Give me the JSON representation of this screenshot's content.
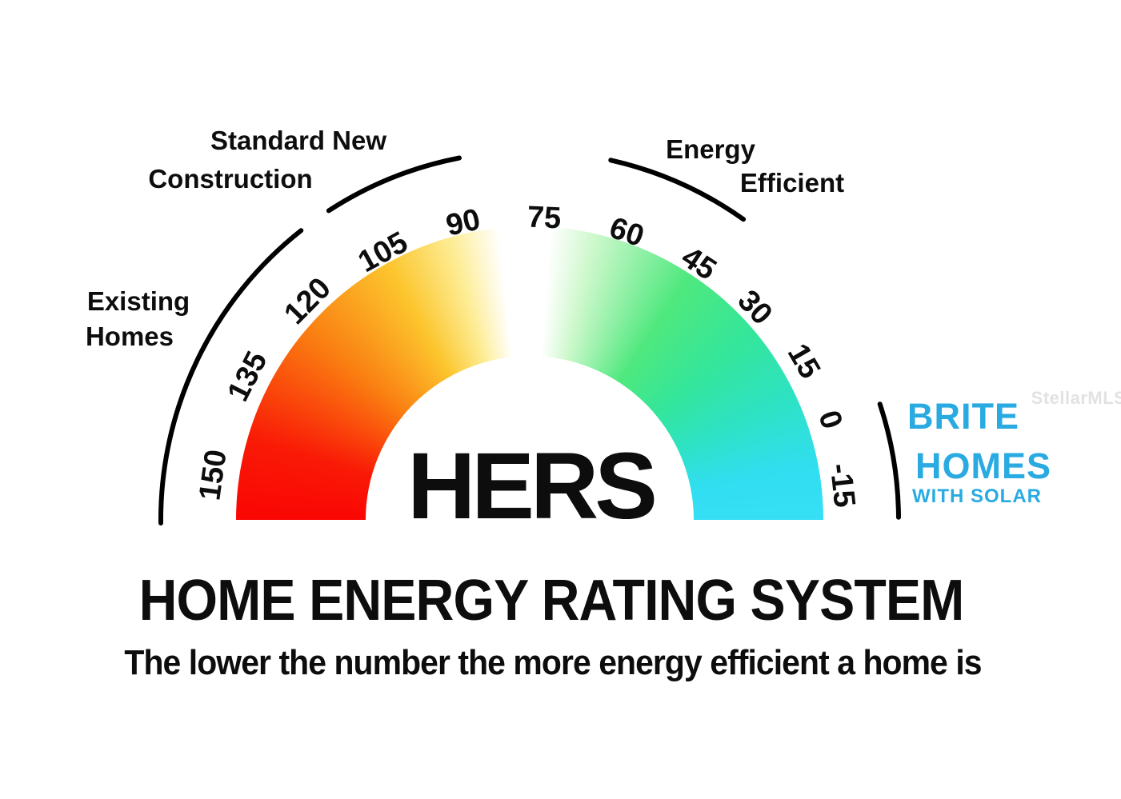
{
  "title": "HOME ENERGY RATING SYSTEM",
  "subtitle": "The lower the number the more energy efficient a home is",
  "watermark": "StellarMLS",
  "gauge": {
    "center_label": "HERS",
    "scale": {
      "min": -15,
      "max": 150,
      "step": 15
    },
    "ticks": [
      "150",
      "135",
      "120",
      "105",
      "90",
      "75",
      "60",
      "45",
      "30",
      "15",
      "0",
      "-15"
    ],
    "gradient_stops": [
      {
        "deg": 0,
        "color": "#fa0604"
      },
      {
        "deg": 16,
        "color": "#f91a06"
      },
      {
        "deg": 40,
        "color": "#fa7d11"
      },
      {
        "deg": 61,
        "color": "#fcc52d"
      },
      {
        "deg": 74,
        "color": "#fdec92"
      },
      {
        "deg": 84,
        "color": "#ffffff"
      },
      {
        "deg": 94,
        "color": "#ffffff"
      },
      {
        "deg": 103,
        "color": "#cdf8cb"
      },
      {
        "deg": 123,
        "color": "#4fe87e"
      },
      {
        "deg": 140,
        "color": "#34e69b"
      },
      {
        "deg": 155,
        "color": "#2ee2c4"
      },
      {
        "deg": 169,
        "color": "#31def0"
      },
      {
        "deg": 180,
        "color": "#36dff5"
      }
    ]
  },
  "annotations": {
    "existing_homes": {
      "line1": "Existing",
      "line2": "Homes"
    },
    "standard_new_construction": {
      "line1": "Standard New",
      "line2": "Construction"
    },
    "energy_efficient": {
      "line1": "Energy",
      "line2": "Efficient"
    }
  },
  "brand": {
    "name_line1": "BRITE",
    "name_line2": "HOMES",
    "tagline": "WITH SOLAR",
    "color": "#29ABE2"
  },
  "arc_color": "#000000"
}
